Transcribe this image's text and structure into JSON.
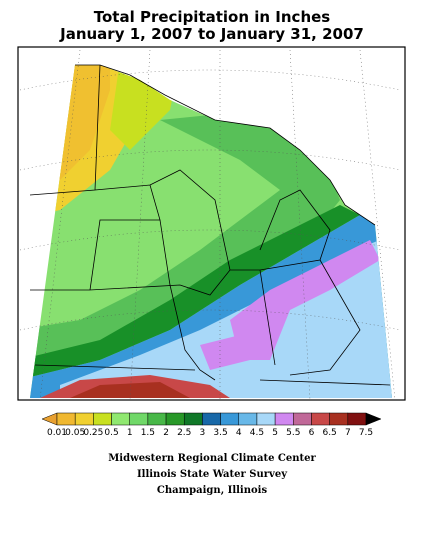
{
  "header": {
    "title": "Total Precipitation in Inches",
    "subtitle": "January 1, 2007 to January 31, 2007"
  },
  "legend": {
    "labels": [
      "0.01",
      "0.05",
      "0.25",
      "0.5",
      "1",
      "1.5",
      "2",
      "2.5",
      "3",
      "3.5",
      "4",
      "4.5",
      "5",
      "5.5",
      "6",
      "6.5",
      "7",
      "7.5"
    ],
    "colors": [
      "#e8a030",
      "#f0b830",
      "#f0d030",
      "#c8e020",
      "#90e870",
      "#70d868",
      "#48b848",
      "#289828",
      "#107828",
      "#1868a8",
      "#3898d8",
      "#68b8e8",
      "#a8d8f8",
      "#d088f0",
      "#c06898",
      "#c84848",
      "#a83020",
      "#801010",
      "#000000"
    ]
  },
  "credits": [
    "Midwestern Regional Climate Center",
    "Illinois State Water Survey",
    "Champaign, Illinois"
  ]
}
